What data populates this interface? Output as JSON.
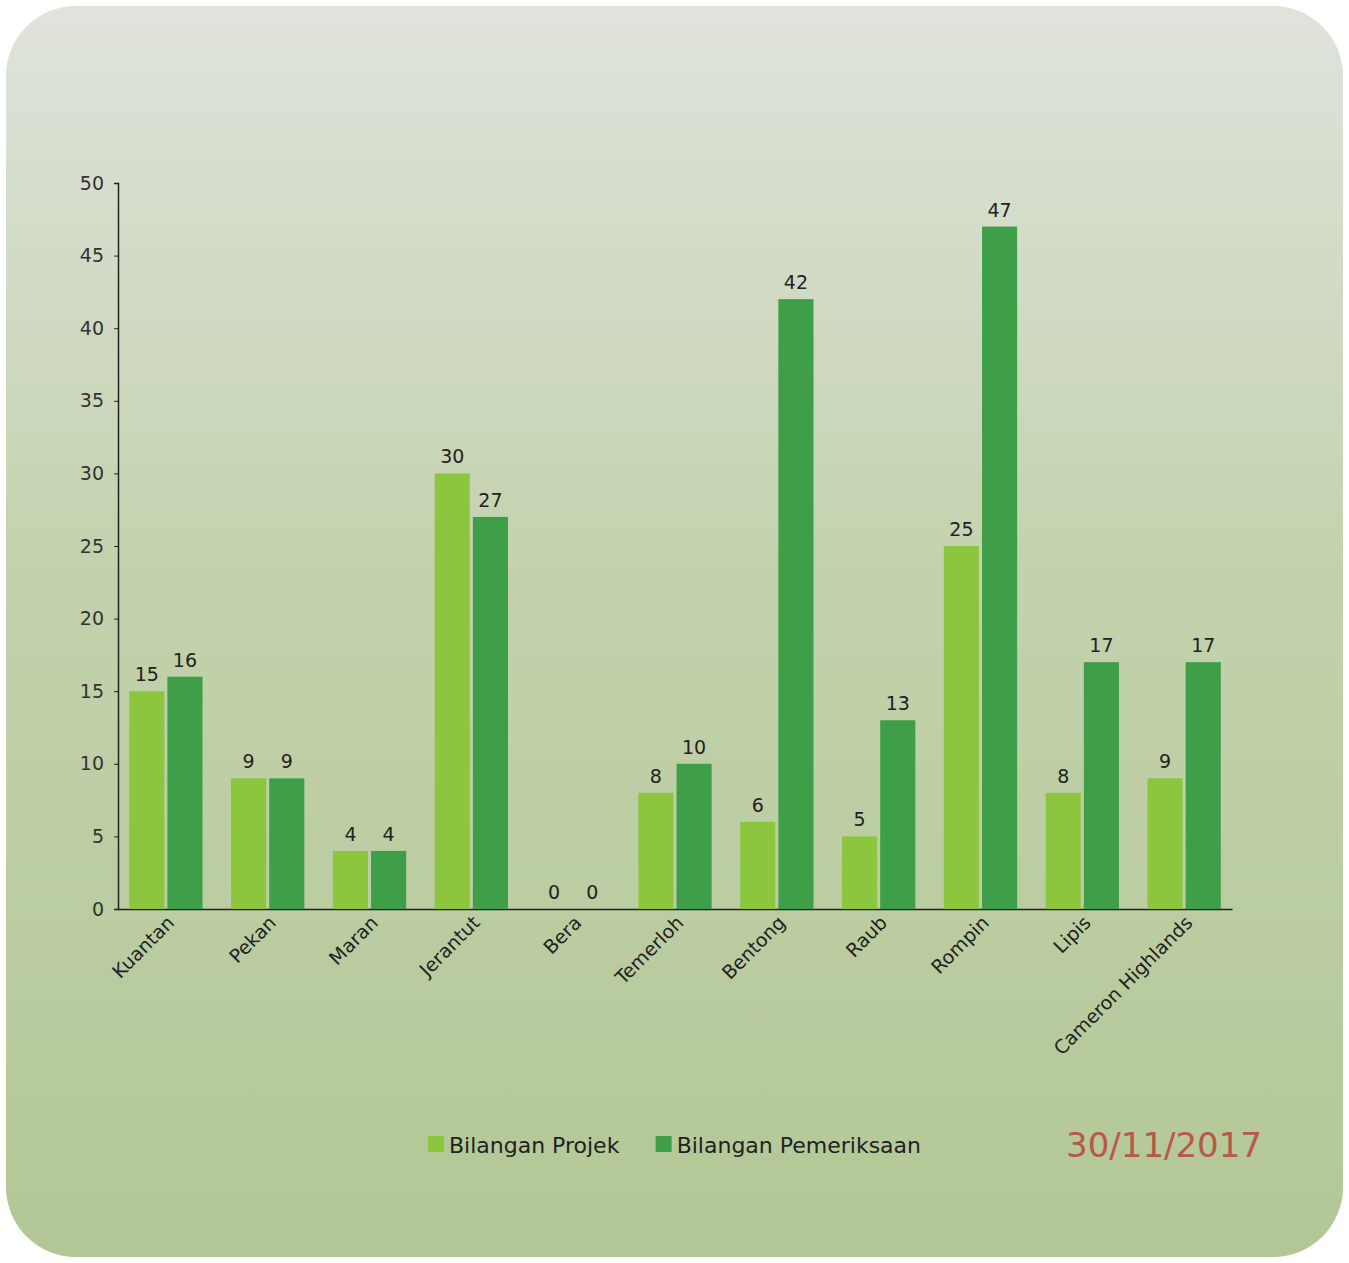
{
  "chart_data": {
    "type": "bar",
    "categories": [
      "Kuantan",
      "Pekan",
      "Maran",
      "Jerantut",
      "Bera",
      "Temerloh",
      "Bentong",
      "Raub",
      "Rompin",
      "Lipis",
      "Cameron Highlands"
    ],
    "series": [
      {
        "name": "Bilangan Projek",
        "color": "#8cc63e",
        "values": [
          15,
          9,
          4,
          30,
          0,
          8,
          6,
          5,
          25,
          8,
          9
        ]
      },
      {
        "name": "Bilangan Pemeriksaan",
        "color": "#3f9f48",
        "values": [
          16,
          9,
          4,
          27,
          0,
          10,
          42,
          13,
          47,
          17,
          17
        ]
      }
    ],
    "ylim": [
      0,
      50
    ],
    "yticks": [
      0,
      5,
      10,
      15,
      20,
      25,
      30,
      35,
      40,
      45,
      50
    ],
    "grid": false,
    "legend": "bottom",
    "data_labels": true,
    "annotations": [
      {
        "text": "30/11/2017"
      }
    ]
  }
}
